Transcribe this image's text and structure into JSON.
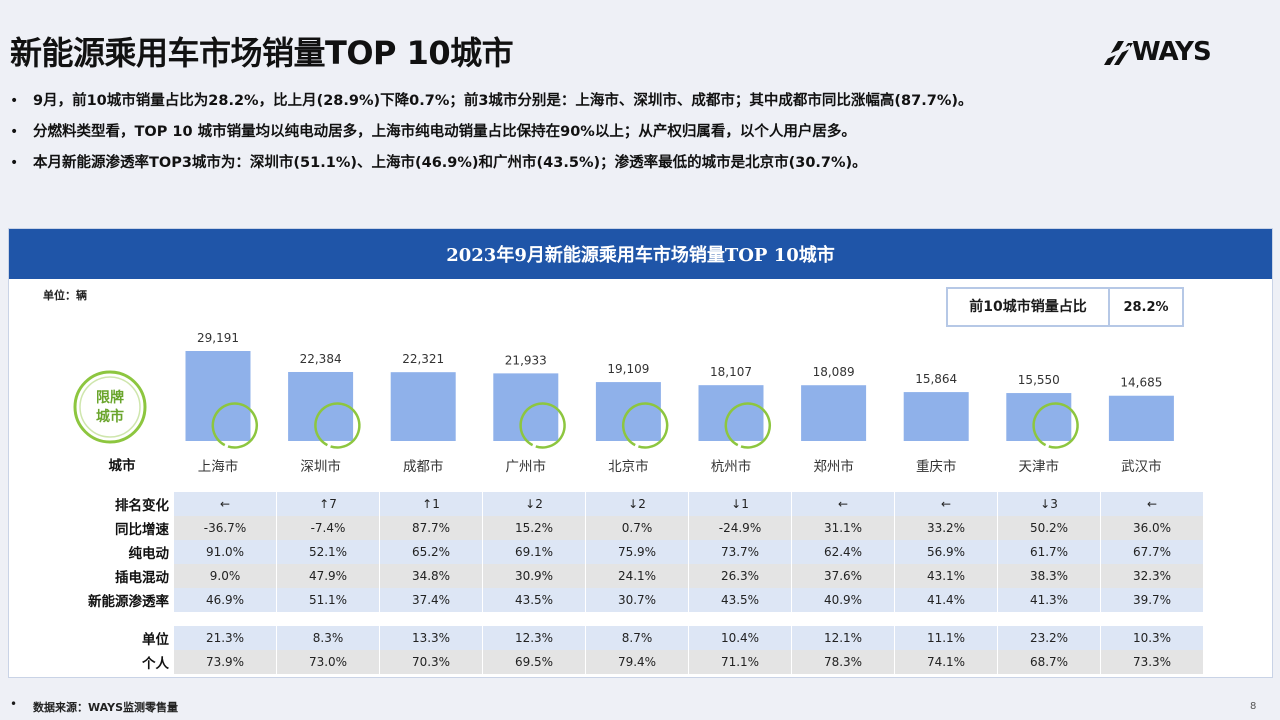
{
  "title": "新能源乘用车市场销量TOP 10城市",
  "logo_text": "WAYS",
  "bullets": [
    "9月，前10城市销量占比为28.2%，比上月(28.9%)下降0.7%；前3城市分别是：上海市、深圳市、成都市；其中成都市同比涨幅高(87.7%)。",
    "分燃料类型看，TOP 10 城市销量均以纯电动居多，上海市纯电动销量占比保持在90%以上；从产权归属看，以个人用户居多。",
    "本月新能源渗透率TOP3城市为：深圳市(51.1%)、上海市(46.9%)和广州市(43.5%)；渗透率最低的城市是北京市(30.7%)。"
  ],
  "panel_title": "2023年9月新能源乘用车市场销量TOP 10城市",
  "unit_label": "单位：辆",
  "share_label": "前10城市销量占比",
  "share_value": "28.2%",
  "badge_text": [
    "限牌",
    "城市"
  ],
  "city_row_label": "城市",
  "colors": {
    "bar": "#8fb1ea",
    "header": "#1f55a8",
    "ring": "#8dc63f"
  },
  "chart_data": {
    "type": "bar",
    "categories": [
      "上海市",
      "深圳市",
      "成都市",
      "广州市",
      "北京市",
      "杭州市",
      "郑州市",
      "重庆市",
      "天津市",
      "武汉市"
    ],
    "values": [
      29191,
      22384,
      22321,
      21933,
      19109,
      18107,
      18089,
      15864,
      15550,
      14685
    ],
    "value_labels": [
      "29,191",
      "22,384",
      "22,321",
      "21,933",
      "19,109",
      "18,107",
      "18,089",
      "15,864",
      "15,550",
      "14,685"
    ],
    "restricted_city": [
      true,
      true,
      false,
      true,
      true,
      true,
      false,
      false,
      true,
      false
    ],
    "unit": "辆"
  },
  "table": {
    "rows": [
      {
        "label": "排名变化",
        "style": "blue",
        "values": [
          "←",
          "↑7",
          "↑1",
          "↓2",
          "↓2",
          "↓1",
          "←",
          "←",
          "↓3",
          "←"
        ]
      },
      {
        "label": "同比增速",
        "style": "grey",
        "values": [
          "-36.7%",
          "-7.4%",
          "87.7%",
          "15.2%",
          "0.7%",
          "-24.9%",
          "31.1%",
          "33.2%",
          "50.2%",
          "36.0%"
        ]
      },
      {
        "label": "纯电动",
        "style": "blue",
        "values": [
          "91.0%",
          "52.1%",
          "65.2%",
          "69.1%",
          "75.9%",
          "73.7%",
          "62.4%",
          "56.9%",
          "61.7%",
          "67.7%"
        ]
      },
      {
        "label": "插电混动",
        "style": "grey",
        "values": [
          "9.0%",
          "47.9%",
          "34.8%",
          "30.9%",
          "24.1%",
          "26.3%",
          "37.6%",
          "43.1%",
          "38.3%",
          "32.3%"
        ]
      },
      {
        "label": "新能源渗透率",
        "style": "blue",
        "values": [
          "46.9%",
          "51.1%",
          "37.4%",
          "43.5%",
          "30.7%",
          "43.5%",
          "40.9%",
          "41.4%",
          "41.3%",
          "39.7%"
        ]
      }
    ],
    "rows2": [
      {
        "label": "单位",
        "style": "blue",
        "values": [
          "21.3%",
          "8.3%",
          "13.3%",
          "12.3%",
          "8.7%",
          "10.4%",
          "12.1%",
          "11.1%",
          "23.2%",
          "10.3%"
        ]
      },
      {
        "label": "个人",
        "style": "grey",
        "values": [
          "73.9%",
          "73.0%",
          "70.3%",
          "69.5%",
          "79.4%",
          "71.1%",
          "78.3%",
          "74.1%",
          "68.7%",
          "73.3%"
        ]
      }
    ]
  },
  "footer_source": "数据来源：WAYS监测零售量",
  "page_number": "8"
}
